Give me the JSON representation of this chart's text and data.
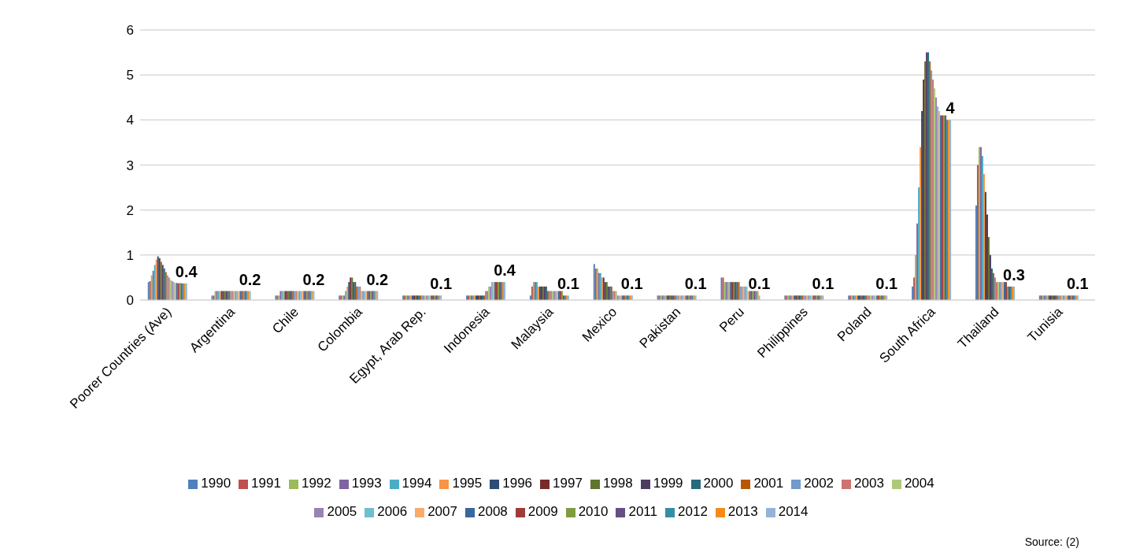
{
  "chart_data": {
    "type": "bar",
    "categories": [
      "Poorer Countries (Ave)",
      "Argentina",
      "Chile",
      "Colombia",
      "Egypt, Arab Rep.",
      "Indonesia",
      "Malaysia",
      "Mexico",
      "Pakistan",
      "Peru",
      "Philippines",
      "Poland",
      "South Africa",
      "Thailand",
      "Tunisia"
    ],
    "ylim": [
      0,
      6
    ],
    "yticks": [
      0,
      1,
      2,
      3,
      4,
      5,
      6
    ],
    "grid": "y",
    "legend": "bottom",
    "annotations": [
      "Source: (2)"
    ],
    "series": [
      {
        "name": "1990",
        "color": "#4f81bd",
        "values": [
          0.4,
          0.1,
          0.1,
          0.1,
          0.1,
          0.1,
          0.1,
          0.8,
          0.1,
          0.5,
          0.1,
          0.1,
          0.3,
          2.1,
          0.1
        ]
      },
      {
        "name": "1991",
        "color": "#c0504d",
        "values": [
          0.42,
          0.1,
          0.1,
          0.1,
          0.1,
          0.1,
          0.3,
          0.7,
          0.1,
          0.5,
          0.1,
          0.1,
          0.5,
          3.0,
          0.1
        ]
      },
      {
        "name": "1992",
        "color": "#9bbb59",
        "values": [
          0.55,
          0.2,
          0.1,
          0.1,
          0.1,
          0.1,
          0.4,
          0.7,
          0.1,
          0.4,
          0.1,
          0.1,
          1.0,
          3.4,
          0.1
        ]
      },
      {
        "name": "1993",
        "color": "#8064a2",
        "values": [
          0.65,
          0.2,
          0.2,
          0.1,
          0.1,
          0.1,
          0.4,
          0.6,
          0.1,
          0.4,
          0.1,
          0.1,
          1.7,
          3.4,
          0.1
        ]
      },
      {
        "name": "1994",
        "color": "#4bacc6",
        "values": [
          0.78,
          0.2,
          0.2,
          0.2,
          0.1,
          0.1,
          0.4,
          0.6,
          0.1,
          0.4,
          0.1,
          0.1,
          2.5,
          3.2,
          0.1
        ]
      },
      {
        "name": "1995",
        "color": "#f79646",
        "values": [
          0.9,
          0.2,
          0.2,
          0.3,
          0.1,
          0.1,
          0.3,
          0.5,
          0.1,
          0.4,
          0.1,
          0.1,
          3.4,
          2.8,
          0.1
        ]
      },
      {
        "name": "1996",
        "color": "#2c4d75",
        "values": [
          0.97,
          0.2,
          0.2,
          0.4,
          0.1,
          0.1,
          0.3,
          0.5,
          0.1,
          0.4,
          0.1,
          0.1,
          4.2,
          2.4,
          0.1
        ]
      },
      {
        "name": "1997",
        "color": "#772c2a",
        "values": [
          0.93,
          0.2,
          0.2,
          0.5,
          0.1,
          0.1,
          0.3,
          0.4,
          0.1,
          0.4,
          0.1,
          0.1,
          4.9,
          1.9,
          0.1
        ]
      },
      {
        "name": "1998",
        "color": "#5f7530",
        "values": [
          0.85,
          0.2,
          0.2,
          0.5,
          0.1,
          0.1,
          0.3,
          0.4,
          0.1,
          0.4,
          0.1,
          0.1,
          5.3,
          1.4,
          0.1
        ]
      },
      {
        "name": "1999",
        "color": "#4d3b62",
        "values": [
          0.78,
          0.2,
          0.2,
          0.4,
          0.1,
          0.1,
          0.3,
          0.3,
          0.1,
          0.4,
          0.1,
          0.1,
          5.5,
          1.0,
          0.1
        ]
      },
      {
        "name": "2000",
        "color": "#276a7c",
        "values": [
          0.7,
          0.2,
          0.2,
          0.4,
          0.1,
          0.1,
          0.3,
          0.3,
          0.1,
          0.4,
          0.1,
          0.1,
          5.5,
          0.7,
          0.1
        ]
      },
      {
        "name": "2001",
        "color": "#b65708",
        "values": [
          0.62,
          0.2,
          0.2,
          0.3,
          0.1,
          0.1,
          0.2,
          0.3,
          0.1,
          0.4,
          0.1,
          0.1,
          5.3,
          0.6,
          0.1
        ]
      },
      {
        "name": "2002",
        "color": "#729aca",
        "values": [
          0.55,
          0.2,
          0.2,
          0.3,
          0.1,
          0.2,
          0.2,
          0.2,
          0.1,
          0.3,
          0.1,
          0.1,
          5.1,
          0.5,
          0.1
        ]
      },
      {
        "name": "2003",
        "color": "#cd7371",
        "values": [
          0.5,
          0.2,
          0.2,
          0.3,
          0.1,
          0.2,
          0.2,
          0.2,
          0.1,
          0.3,
          0.1,
          0.1,
          4.9,
          0.4,
          0.1
        ]
      },
      {
        "name": "2004",
        "color": "#afc97a",
        "values": [
          0.45,
          0.2,
          0.2,
          0.2,
          0.1,
          0.3,
          0.2,
          0.2,
          0.1,
          0.3,
          0.1,
          0.1,
          4.7,
          0.4,
          0.1
        ]
      },
      {
        "name": "2005",
        "color": "#9983b5",
        "values": [
          0.42,
          0.2,
          0.2,
          0.2,
          0.1,
          0.3,
          0.2,
          0.1,
          0.1,
          0.3,
          0.1,
          0.1,
          4.5,
          0.4,
          0.1
        ]
      },
      {
        "name": "2006",
        "color": "#6fbdd1",
        "values": [
          0.4,
          0.2,
          0.2,
          0.2,
          0.1,
          0.4,
          0.2,
          0.1,
          0.1,
          0.3,
          0.1,
          0.1,
          4.3,
          0.4,
          0.1
        ]
      },
      {
        "name": "2007",
        "color": "#f9ab6b",
        "values": [
          0.38,
          0.2,
          0.2,
          0.2,
          0.1,
          0.4,
          0.2,
          0.1,
          0.1,
          0.2,
          0.1,
          0.1,
          4.2,
          0.4,
          0.1
        ]
      },
      {
        "name": "2008",
        "color": "#3a679c",
        "values": [
          0.38,
          0.2,
          0.2,
          0.2,
          0.1,
          0.4,
          0.2,
          0.1,
          0.1,
          0.2,
          0.1,
          0.1,
          4.1,
          0.4,
          0.1
        ]
      },
      {
        "name": "2009",
        "color": "#9f3b38",
        "values": [
          0.37,
          0.2,
          0.2,
          0.2,
          0.1,
          0.4,
          0.2,
          0.1,
          0.1,
          0.2,
          0.1,
          0.1,
          4.1,
          0.4,
          0.1
        ]
      },
      {
        "name": "2010",
        "color": "#7f9c40",
        "values": [
          0.38,
          0.2,
          0.2,
          0.2,
          0.1,
          0.4,
          0.2,
          0.1,
          0.1,
          0.2,
          0.1,
          0.1,
          4.1,
          0.3,
          0.1
        ]
      },
      {
        "name": "2011",
        "color": "#664f83",
        "values": [
          0.37,
          0.2,
          0.2,
          0.2,
          0.1,
          0.4,
          0.1,
          0.1,
          0.1,
          0.2,
          0.1,
          0.1,
          4.1,
          0.3,
          0.1
        ]
      },
      {
        "name": "2012",
        "color": "#358ea6",
        "values": [
          0.37,
          0.2,
          0.2,
          0.2,
          0.1,
          0.4,
          0.1,
          0.1,
          0.1,
          0.2,
          0.1,
          0.1,
          4.0,
          0.3,
          0.1
        ]
      },
      {
        "name": "2013",
        "color": "#f38c1a",
        "values": [
          0.37,
          0.2,
          0.2,
          0.2,
          0.1,
          0.4,
          0.1,
          0.1,
          0.1,
          0.2,
          0.1,
          0.1,
          4.0,
          0.3,
          0.1
        ]
      },
      {
        "name": "2014",
        "color": "#95b3d7",
        "values": [
          0.37,
          0.2,
          0.2,
          0.2,
          0.1,
          0.4,
          0.1,
          0.1,
          0.1,
          0.1,
          0.1,
          0.1,
          4.0,
          0.3,
          0.1
        ],
        "value_labels": [
          "0.4",
          "0.2",
          "0.2",
          "0.2",
          "0.1",
          "0.4",
          "0.1",
          "0.1",
          "0.1",
          "0.1",
          "0.1",
          "0.1",
          "4",
          "0.3",
          "0.1"
        ]
      }
    ]
  }
}
